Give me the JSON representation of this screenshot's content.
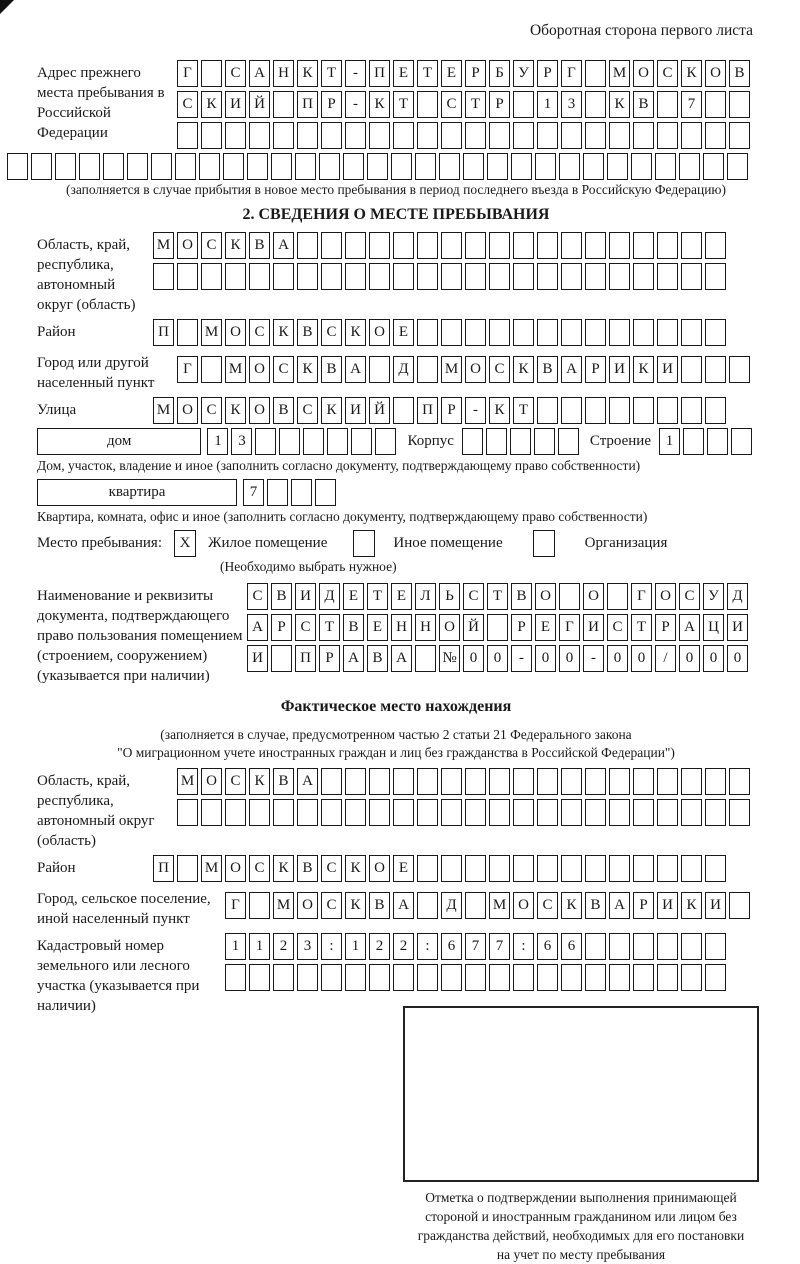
{
  "header": {
    "top_right": "Оборотная сторона первого листа"
  },
  "prev_address": {
    "label": "Адрес прежнего места пребывания в Российской Федерации",
    "rows": [
      [
        "Г",
        "",
        "С",
        "А",
        "Н",
        "К",
        "Т",
        "-",
        "П",
        "Е",
        "Т",
        "Е",
        "Р",
        "Б",
        "У",
        "Р",
        "Г",
        "",
        "М",
        "О",
        "С",
        "К",
        "О",
        "В"
      ],
      [
        "С",
        "К",
        "И",
        "Й",
        "",
        "П",
        "Р",
        "-",
        "К",
        "Т",
        "",
        "С",
        "Т",
        "Р",
        "",
        "1",
        "3",
        "",
        "К",
        "В",
        "",
        "7",
        "",
        ""
      ],
      [
        "",
        "",
        "",
        "",
        "",
        "",
        "",
        "",
        "",
        "",
        "",
        "",
        "",
        "",
        "",
        "",
        "",
        "",
        "",
        "",
        "",
        "",
        "",
        ""
      ]
    ],
    "overflow_row": [
      "",
      "",
      "",
      "",
      "",
      "",
      "",
      "",
      "",
      "",
      "",
      "",
      "",
      "",
      "",
      "",
      "",
      "",
      "",
      "",
      "",
      "",
      "",
      "",
      "",
      "",
      "",
      "",
      "",
      "",
      ""
    ],
    "note": "(заполняется в случае прибытия в новое место пребывания в период последнего въезда в Российскую Федерацию)"
  },
  "section2": {
    "title": "2. СВЕДЕНИЯ О МЕСТЕ ПРЕБЫВАНИЯ",
    "region": {
      "label": "Область, край, республика, автономный округ (область)",
      "rows": [
        [
          "М",
          "О",
          "С",
          "К",
          "В",
          "А",
          "",
          "",
          "",
          "",
          "",
          "",
          "",
          "",
          "",
          "",
          "",
          "",
          "",
          "",
          "",
          "",
          "",
          ""
        ],
        [
          "",
          "",
          "",
          "",
          "",
          "",
          "",
          "",
          "",
          "",
          "",
          "",
          "",
          "",
          "",
          "",
          "",
          "",
          "",
          "",
          "",
          "",
          "",
          ""
        ]
      ]
    },
    "district": {
      "label": "Район",
      "row": [
        "П",
        "",
        "М",
        "О",
        "С",
        "К",
        "В",
        "С",
        "К",
        "О",
        "Е",
        "",
        "",
        "",
        "",
        "",
        "",
        "",
        "",
        "",
        "",
        "",
        "",
        ""
      ]
    },
    "city": {
      "label": "Город или другой населенный пункт",
      "row": [
        "Г",
        "",
        "М",
        "О",
        "С",
        "К",
        "В",
        "А",
        "",
        "Д",
        "",
        "М",
        "О",
        "С",
        "К",
        "В",
        "А",
        "Р",
        "И",
        "К",
        "И",
        "",
        "",
        ""
      ]
    },
    "street": {
      "label": "Улица",
      "row": [
        "М",
        "О",
        "С",
        "К",
        "О",
        "В",
        "С",
        "К",
        "И",
        "Й",
        "",
        "П",
        "Р",
        "-",
        "К",
        "Т",
        "",
        "",
        "",
        "",
        "",
        "",
        "",
        ""
      ]
    },
    "house": {
      "box_label": "дом",
      "digits": [
        "1",
        "3",
        "",
        "",
        "",
        "",
        "",
        ""
      ],
      "korpus_label": "Корпус",
      "korpus_digits": [
        "",
        "",
        "",
        "",
        ""
      ],
      "stroenie_label": "Строение",
      "stroenie_digits": [
        "1",
        "",
        "",
        ""
      ]
    },
    "house_note": "Дом, участок, владение и иное (заполнить согласно документу, подтверждающему право собственности)",
    "apartment": {
      "box_label": "квартира",
      "digits": [
        "7",
        "",
        "",
        ""
      ]
    },
    "apartment_note": "Квартира, комната, офис и иное (заполнить согласно документу, подтверждающему право собственности)",
    "stay_type": {
      "label": "Место пребывания:",
      "options": [
        {
          "label": "Жилое помещение",
          "checked": "X"
        },
        {
          "label": "Иное помещение",
          "checked": ""
        },
        {
          "label": "Организация",
          "checked": ""
        }
      ],
      "note": "(Необходимо выбрать нужное)"
    },
    "document": {
      "label": "Наименование и реквизиты документа, подтверждающего право пользования помещением (строением, сооружением) (указывается при наличии)",
      "rows": [
        [
          "С",
          "В",
          "И",
          "Д",
          "Е",
          "Т",
          "Е",
          "Л",
          "Ь",
          "С",
          "Т",
          "В",
          "О",
          "",
          "О",
          "",
          "Г",
          "О",
          "С",
          "У",
          "Д"
        ],
        [
          "А",
          "Р",
          "С",
          "Т",
          "В",
          "Е",
          "Н",
          "Н",
          "О",
          "Й",
          "",
          "Р",
          "Е",
          "Г",
          "И",
          "С",
          "Т",
          "Р",
          "А",
          "Ц",
          "И"
        ],
        [
          "И",
          "",
          "П",
          "Р",
          "А",
          "В",
          "А",
          "",
          "№",
          "0",
          "0",
          "-",
          "0",
          "0",
          "-",
          "0",
          "0",
          "/",
          "0",
          "0",
          "0"
        ]
      ]
    }
  },
  "actual_location": {
    "title": "Фактическое место нахождения",
    "note_line1": "(заполняется в случае, предусмотренном частью 2 статьи 21 Федерального закона",
    "note_line2": "\"О миграционном учете иностранных граждан и лиц без гражданства в Российской Федерации\")",
    "region": {
      "label": "Область, край, республика, автономный округ (область)",
      "rows": [
        [
          "М",
          "О",
          "С",
          "К",
          "В",
          "А",
          "",
          "",
          "",
          "",
          "",
          "",
          "",
          "",
          "",
          "",
          "",
          "",
          "",
          "",
          "",
          "",
          "",
          ""
        ],
        [
          "",
          "",
          "",
          "",
          "",
          "",
          "",
          "",
          "",
          "",
          "",
          "",
          "",
          "",
          "",
          "",
          "",
          "",
          "",
          "",
          "",
          "",
          "",
          ""
        ]
      ]
    },
    "district": {
      "label": "Район",
      "row": [
        "П",
        "",
        "М",
        "О",
        "С",
        "К",
        "В",
        "С",
        "К",
        "О",
        "Е",
        "",
        "",
        "",
        "",
        "",
        "",
        "",
        "",
        "",
        "",
        "",
        "",
        ""
      ]
    },
    "city": {
      "label": "Город, сельское поселение, иной населенный пункт",
      "row": [
        "Г",
        "",
        "М",
        "О",
        "С",
        "К",
        "В",
        "А",
        "",
        "Д",
        "",
        "М",
        "О",
        "С",
        "К",
        "В",
        "А",
        "Р",
        "И",
        "К",
        "И",
        ""
      ]
    },
    "cadastral": {
      "label": "Кадастровый номер земельного или лесного участка (указывается при наличии)",
      "rows": [
        [
          "1",
          "1",
          "2",
          "3",
          ":",
          "1",
          "2",
          "2",
          ":",
          "6",
          "7",
          "7",
          ":",
          "6",
          "6",
          "",
          "",
          "",
          "",
          "",
          ""
        ],
        [
          "",
          "",
          "",
          "",
          "",
          "",
          "",
          "",
          "",
          "",
          "",
          "",
          "",
          "",
          "",
          "",
          "",
          "",
          "",
          "",
          ""
        ]
      ]
    },
    "stamp_caption": [
      "Отметка о подтверждении выполнения принимающей",
      "стороной и иностранным гражданином или лицом без",
      "гражданства действий, необходимых для его постановки",
      "на учет по месту пребывания"
    ]
  }
}
